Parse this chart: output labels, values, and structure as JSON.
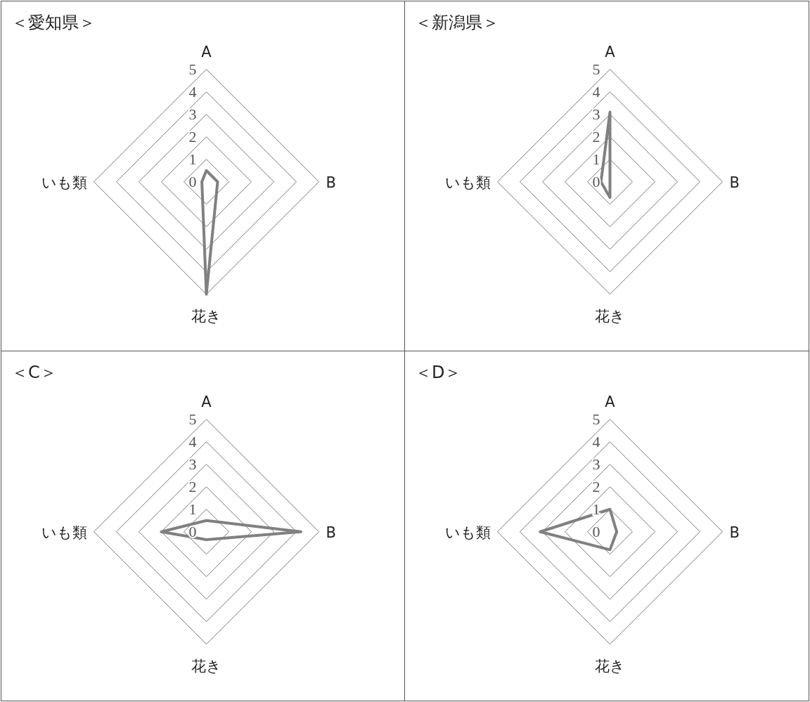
{
  "chart_data": [
    {
      "type": "radar",
      "title": "＜愛知県＞",
      "categories": [
        "A",
        "B",
        "花き",
        "いも類"
      ],
      "ylim": [
        0,
        5
      ],
      "yticks": [
        0,
        1,
        2,
        3,
        4,
        5
      ],
      "series": [
        {
          "color": "#808080",
          "values": [
            0.5,
            0.5,
            5,
            0.2
          ]
        }
      ]
    },
    {
      "type": "radar",
      "title": "＜新潟県＞",
      "categories": [
        "A",
        "B",
        "花き",
        "いも類"
      ],
      "ylim": [
        0,
        5
      ],
      "yticks": [
        0,
        1,
        2,
        3,
        4,
        5
      ],
      "series": [
        {
          "color": "#808080",
          "values": [
            3.1,
            0,
            0.7,
            0.4
          ]
        }
      ]
    },
    {
      "type": "radar",
      "title": "＜C＞",
      "categories": [
        "A",
        "B",
        "花き",
        "いも類"
      ],
      "ylim": [
        0,
        5
      ],
      "yticks": [
        0,
        1,
        2,
        3,
        4,
        5
      ],
      "series": [
        {
          "color": "#808080",
          "values": [
            0.5,
            4.2,
            0.35,
            2
          ]
        }
      ]
    },
    {
      "type": "radar",
      "title": "＜D＞",
      "categories": [
        "A",
        "B",
        "花き",
        "いも類"
      ],
      "ylim": [
        0,
        5
      ],
      "yticks": [
        0,
        1,
        2,
        3,
        4,
        5
      ],
      "series": [
        {
          "color": "#808080",
          "values": [
            1,
            0.3,
            0.8,
            3.1
          ]
        }
      ]
    }
  ]
}
